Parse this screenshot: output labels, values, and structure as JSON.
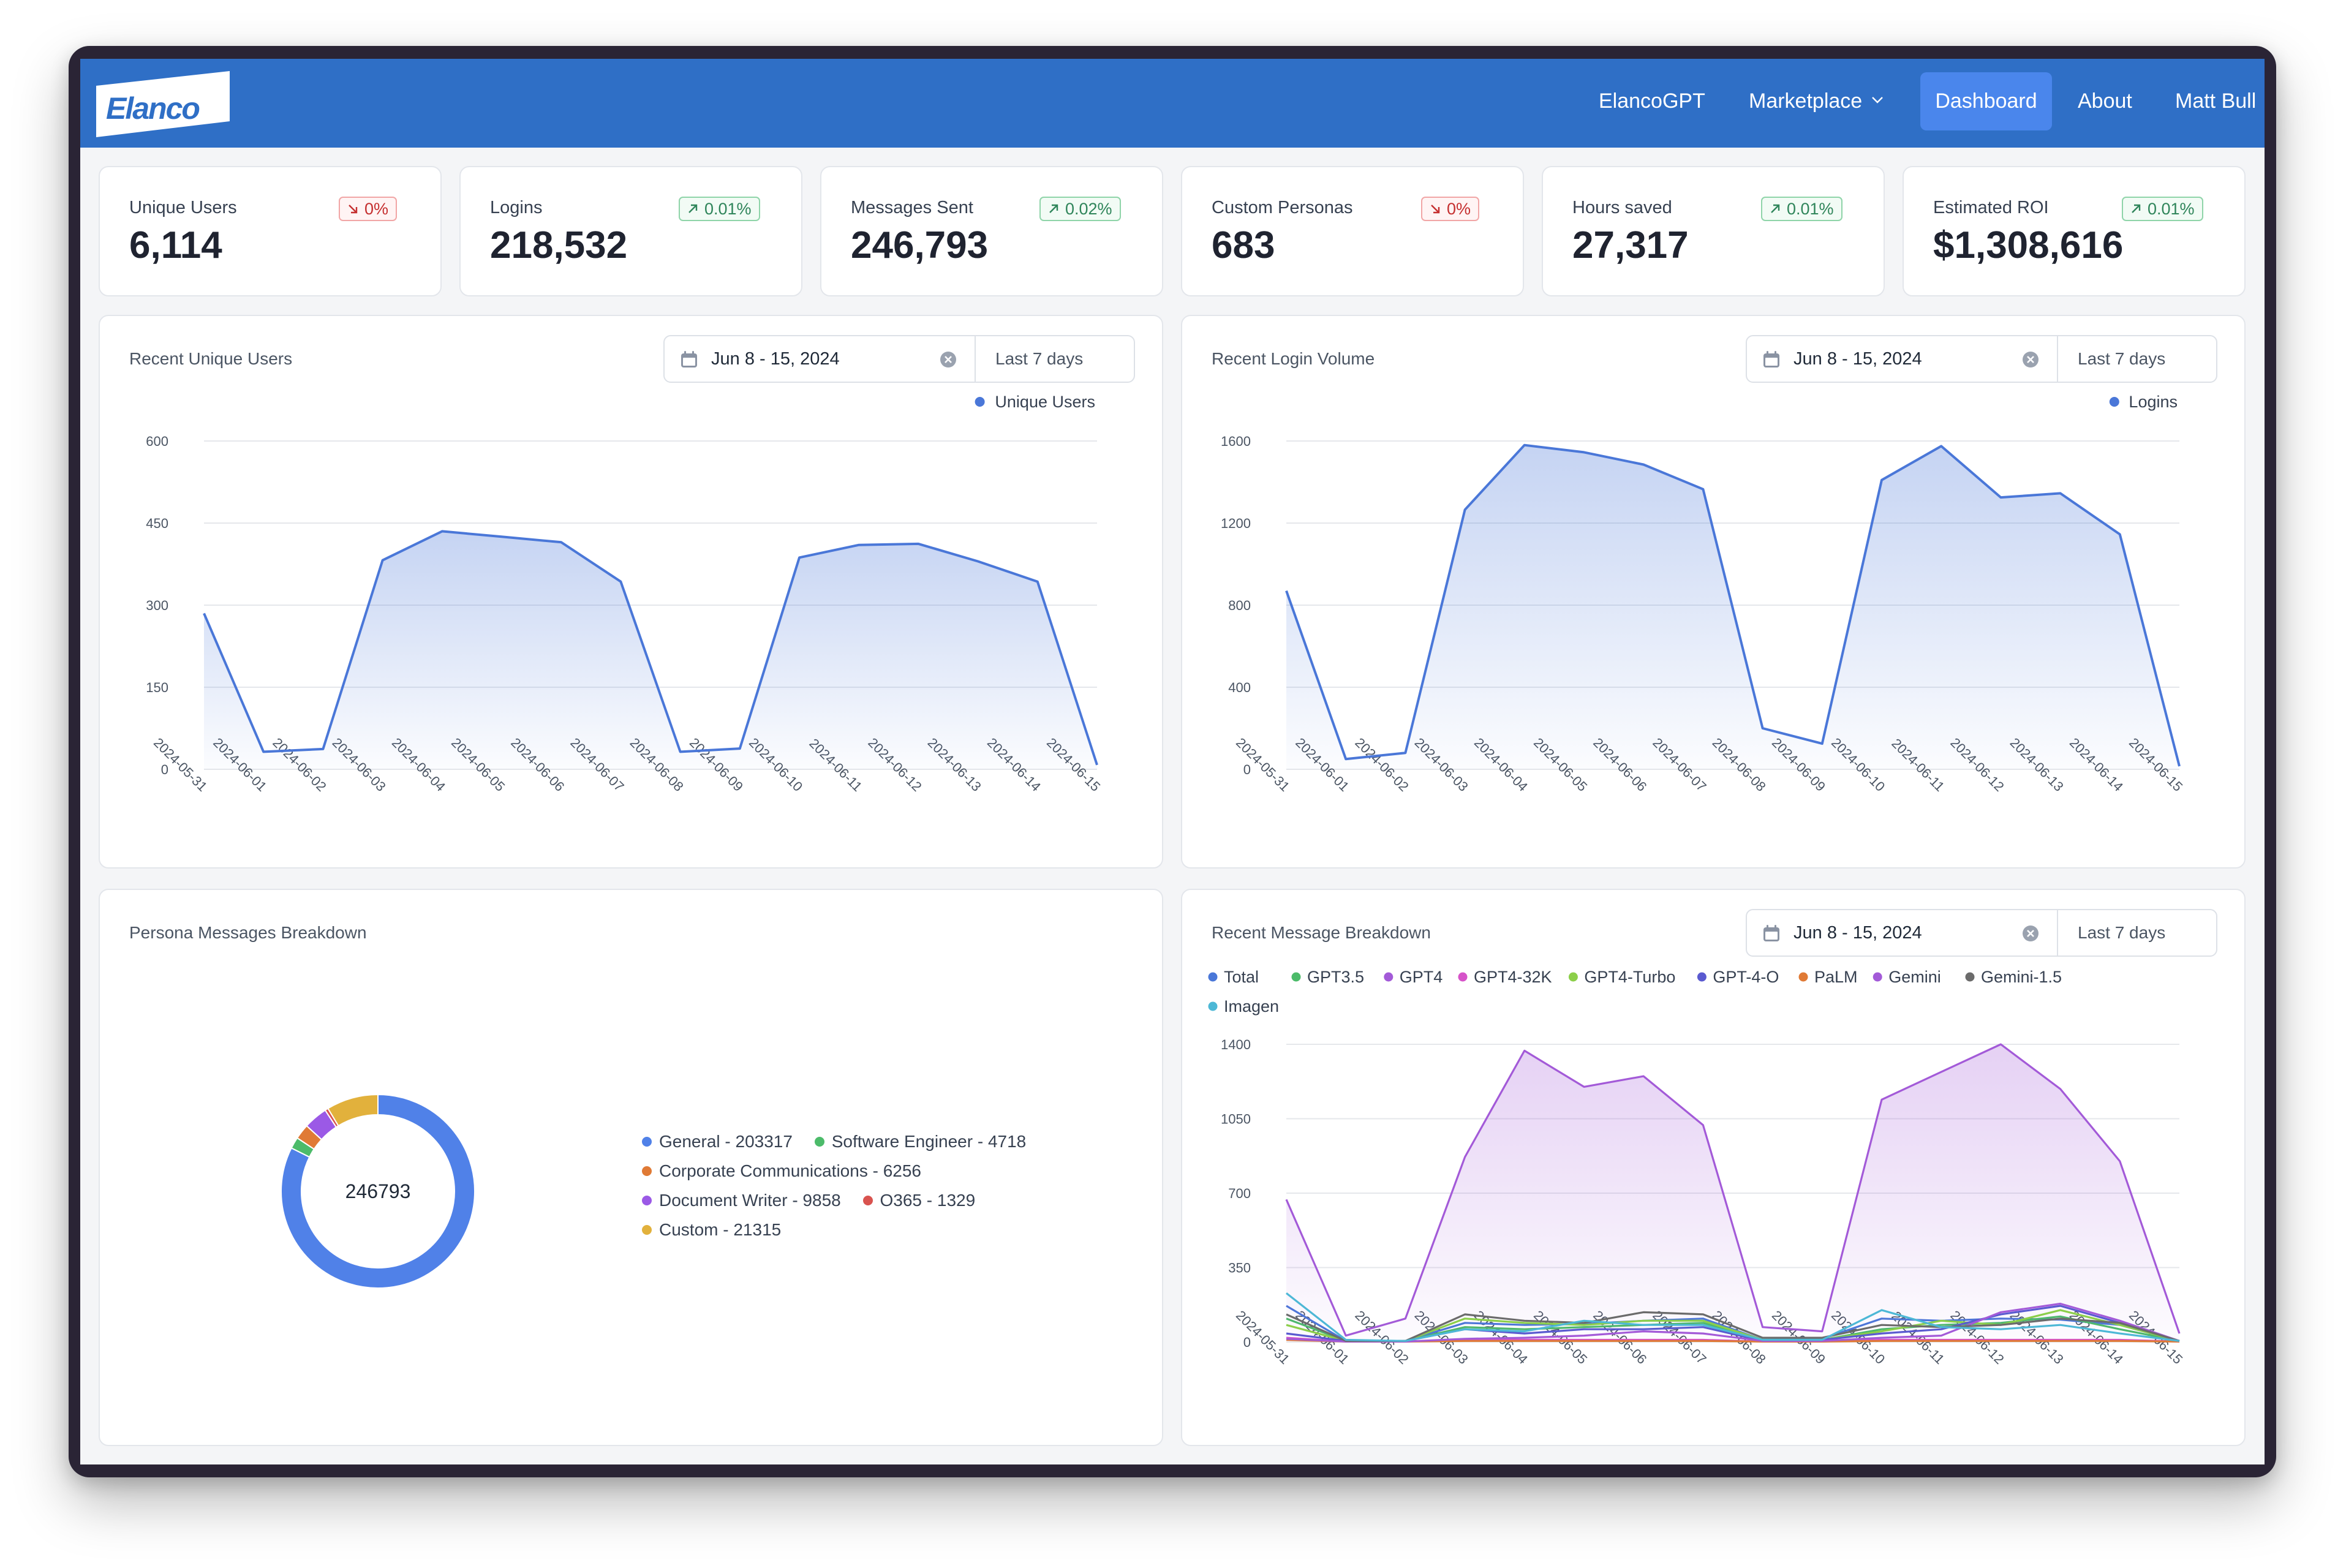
{
  "nav": {
    "logo_text": "Elanco",
    "items": [
      {
        "label": "ElancoGPT",
        "active": false
      },
      {
        "label": "Marketplace",
        "active": false
      },
      {
        "label": "Dashboard",
        "active": true
      },
      {
        "label": "About",
        "active": false
      },
      {
        "label": "Matt Bull",
        "active": false
      }
    ]
  },
  "kpis": [
    {
      "title": "Unique Users",
      "value": "6,114",
      "change": "0%",
      "trend": "down"
    },
    {
      "title": "Logins",
      "value": "218,532",
      "change": "0.01%",
      "trend": "up"
    },
    {
      "title": "Messages Sent",
      "value": "246,793",
      "change": "0.02%",
      "trend": "up"
    },
    {
      "title": "Custom Personas",
      "value": "683",
      "change": "0%",
      "trend": "down"
    },
    {
      "title": "Hours saved",
      "value": "27,317",
      "change": "0.01%",
      "trend": "up"
    },
    {
      "title": "Estimated ROI",
      "value": "$1,308,616",
      "change": "0.01%",
      "trend": "up"
    }
  ],
  "panels": {
    "unique_users": {
      "title": "Recent Unique Users",
      "date_range": "Jun 8 - 15, 2024",
      "preset": "Last 7 days"
    },
    "logins": {
      "title": "Recent Login Volume",
      "date_range": "Jun 8 - 15, 2024",
      "preset": "Last 7 days"
    },
    "persona": {
      "title": "Persona Messages Breakdown",
      "center_total": "246793"
    },
    "messages": {
      "title": "Recent Message Breakdown",
      "date_range": "Jun 8 - 15, 2024",
      "preset": "Last 7 days"
    }
  },
  "colors": {
    "accent": "#2f6fc6",
    "line_blue": "#4a77d8",
    "purple": "#a35ad8",
    "badge_up": "#2f855a",
    "badge_down": "#c53030"
  },
  "chart_data": [
    {
      "type": "area",
      "title": "Recent Unique Users",
      "x": [
        "2024-05-31",
        "2024-06-01",
        "2024-06-02",
        "2024-06-03",
        "2024-06-04",
        "2024-06-05",
        "2024-06-06",
        "2024-06-07",
        "2024-06-08",
        "2024-06-09",
        "2024-06-10",
        "2024-06-11",
        "2024-06-12",
        "2024-06-13",
        "2024-06-14",
        "2024-06-15"
      ],
      "series": [
        {
          "name": "Unique Users",
          "color": "#4a77d8",
          "values": [
            285,
            32,
            37,
            382,
            435,
            425,
            415,
            343,
            32,
            38,
            387,
            410,
            412,
            380,
            343,
            8
          ]
        }
      ],
      "yticks": [
        0,
        150,
        300,
        450,
        600
      ],
      "ylim": [
        0,
        600
      ],
      "legend": "top-right",
      "grid": true
    },
    {
      "type": "area",
      "title": "Recent Login Volume",
      "x": [
        "2024-05-31",
        "2024-06-01",
        "2024-06-02",
        "2024-06-03",
        "2024-06-04",
        "2024-06-05",
        "2024-06-06",
        "2024-06-07",
        "2024-06-08",
        "2024-06-09",
        "2024-06-10",
        "2024-06-11",
        "2024-06-12",
        "2024-06-13",
        "2024-06-14",
        "2024-06-15"
      ],
      "series": [
        {
          "name": "Logins",
          "color": "#4a77d8",
          "values": [
            870,
            50,
            80,
            1265,
            1580,
            1545,
            1485,
            1365,
            200,
            125,
            1410,
            1575,
            1325,
            1345,
            1145,
            15
          ]
        }
      ],
      "yticks": [
        0,
        400,
        800,
        1200,
        1600
      ],
      "ylim": [
        0,
        1600
      ],
      "legend": "top-right",
      "grid": true
    },
    {
      "type": "pie",
      "title": "Persona Messages Breakdown",
      "donut": true,
      "center_label": "246793",
      "slices": [
        {
          "name": "General",
          "value": 203317,
          "color": "#5081e8",
          "label": "General - 203317"
        },
        {
          "name": "Software Engineer",
          "value": 4718,
          "color": "#4cbb6a",
          "label": "Software Engineer - 4718"
        },
        {
          "name": "Corporate Communications",
          "value": 6256,
          "color": "#e07a35",
          "label": "Corporate Communications - 6256"
        },
        {
          "name": "Document Writer",
          "value": 9858,
          "color": "#9b59e6",
          "label": "Document Writer - 9858"
        },
        {
          "name": "O365",
          "value": 1329,
          "color": "#d9534f",
          "label": "O365 - 1329"
        },
        {
          "name": "Custom",
          "value": 21315,
          "color": "#e2b13c",
          "label": "Custom - 21315"
        }
      ],
      "legend": "right"
    },
    {
      "type": "area",
      "title": "Recent Message Breakdown",
      "x": [
        "2024-05-31",
        "2024-06-01",
        "2024-06-02",
        "2024-06-03",
        "2024-06-04",
        "2024-06-05",
        "2024-06-06",
        "2024-06-07",
        "2024-06-08",
        "2024-06-09",
        "2024-06-10",
        "2024-06-11",
        "2024-06-12",
        "2024-06-13",
        "2024-06-14",
        "2024-06-15"
      ],
      "series": [
        {
          "name": "Total",
          "color": "#4a77d8",
          "values": [
            170,
            5,
            5,
            90,
            80,
            85,
            100,
            110,
            10,
            15,
            110,
            100,
            110,
            105,
            80,
            5
          ]
        },
        {
          "name": "GPT3.5",
          "color": "#4cbb6a",
          "values": [
            110,
            5,
            5,
            70,
            60,
            70,
            80,
            90,
            10,
            10,
            60,
            80,
            90,
            120,
            60,
            5
          ]
        },
        {
          "name": "GPT4",
          "color": "#a35ad8",
          "values": [
            670,
            30,
            110,
            870,
            1370,
            1200,
            1250,
            1020,
            70,
            50,
            1140,
            1270,
            1400,
            1190,
            850,
            40
          ]
        },
        {
          "name": "GPT4-32K",
          "color": "#d653c9",
          "values": [
            20,
            2,
            2,
            10,
            10,
            10,
            10,
            10,
            2,
            2,
            10,
            10,
            10,
            10,
            10,
            2
          ]
        },
        {
          "name": "GPT4-Turbo",
          "color": "#8ccf4a",
          "values": [
            80,
            5,
            5,
            110,
            90,
            80,
            100,
            100,
            10,
            10,
            50,
            100,
            80,
            150,
            80,
            5
          ]
        },
        {
          "name": "GPT-4-O",
          "color": "#5a5ad0",
          "values": [
            40,
            5,
            5,
            60,
            40,
            60,
            60,
            70,
            5,
            10,
            40,
            60,
            130,
            170,
            90,
            5
          ]
        },
        {
          "name": "PaLM",
          "color": "#e07a35",
          "values": [
            10,
            2,
            2,
            5,
            5,
            5,
            5,
            5,
            2,
            2,
            5,
            5,
            5,
            5,
            5,
            2
          ]
        },
        {
          "name": "Gemini",
          "color": "#a35ad8",
          "values": [
            15,
            2,
            2,
            15,
            20,
            30,
            50,
            40,
            5,
            5,
            20,
            30,
            140,
            180,
            100,
            5
          ]
        },
        {
          "name": "Gemini-1.5",
          "color": "#6b6b6b",
          "values": [
            130,
            5,
            5,
            130,
            100,
            90,
            140,
            130,
            20,
            20,
            80,
            70,
            80,
            110,
            90,
            5
          ]
        },
        {
          "name": "Imagen",
          "color": "#4db8d6",
          "values": [
            230,
            10,
            5,
            60,
            50,
            100,
            80,
            80,
            10,
            10,
            150,
            70,
            60,
            80,
            40,
            5
          ]
        }
      ],
      "yticks": [
        0,
        350,
        700,
        1050,
        1400
      ],
      "ylim": [
        0,
        1400
      ],
      "legend": "top-left",
      "grid": true
    }
  ]
}
